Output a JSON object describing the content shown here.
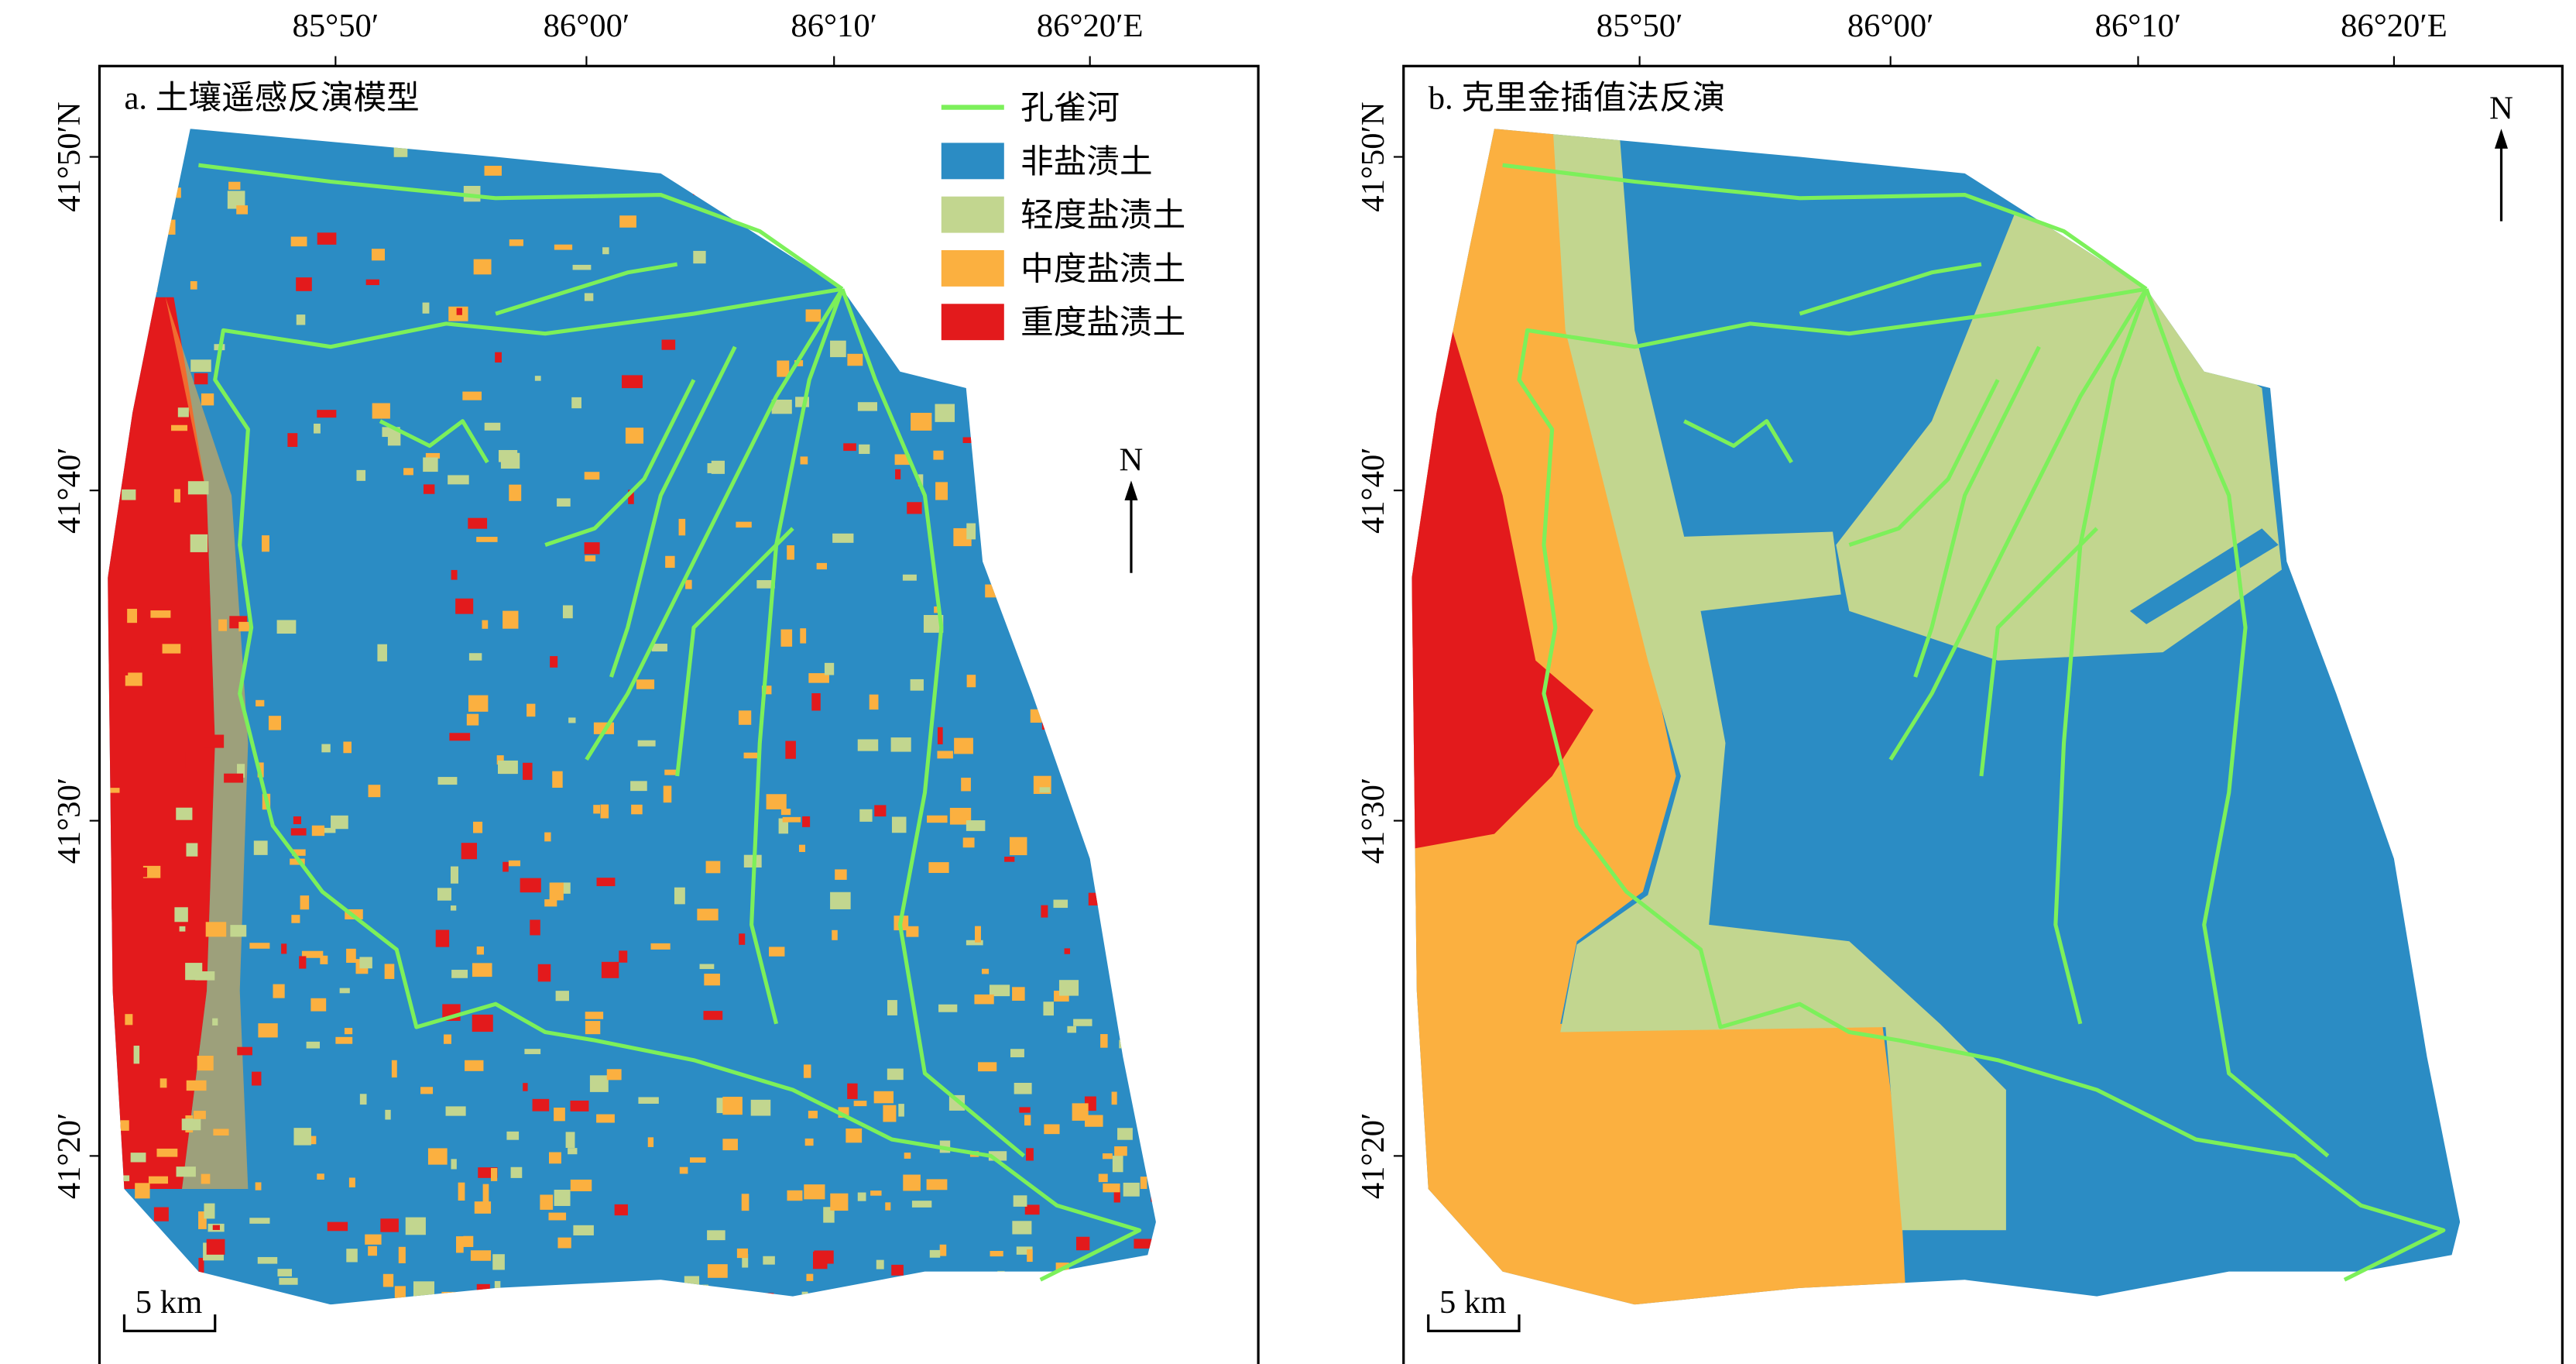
{
  "panels": [
    {
      "title": "a. 土壤遥感反演模型",
      "lon_labels": [
        "85°50′",
        "86°00′",
        "86°10′",
        "86°20′E"
      ],
      "lat_labels": [
        "41°50′N",
        "41°40′",
        "41°30′",
        "41°20′"
      ],
      "north": "N",
      "scale_bar": "5 km"
    },
    {
      "title": "b. 克里金插值法反演",
      "lon_labels": [
        "85°50′",
        "86°00′",
        "86°10′",
        "86°20′E"
      ],
      "lat_labels": [
        "41°50′N",
        "41°40′",
        "41°30′",
        "41°20′"
      ],
      "north": "N",
      "scale_bar": "5 km"
    }
  ],
  "legend": [
    {
      "label": "孔雀河",
      "color": "#7cf05a"
    },
    {
      "label": "非盐渍土",
      "color": "#2b8cc4"
    },
    {
      "label": "轻度盐渍土",
      "color": "#c2d68f"
    },
    {
      "label": "中度盐渍土",
      "color": "#fbb040"
    },
    {
      "label": "重度盐渍土",
      "color": "#e31a1c"
    }
  ]
}
